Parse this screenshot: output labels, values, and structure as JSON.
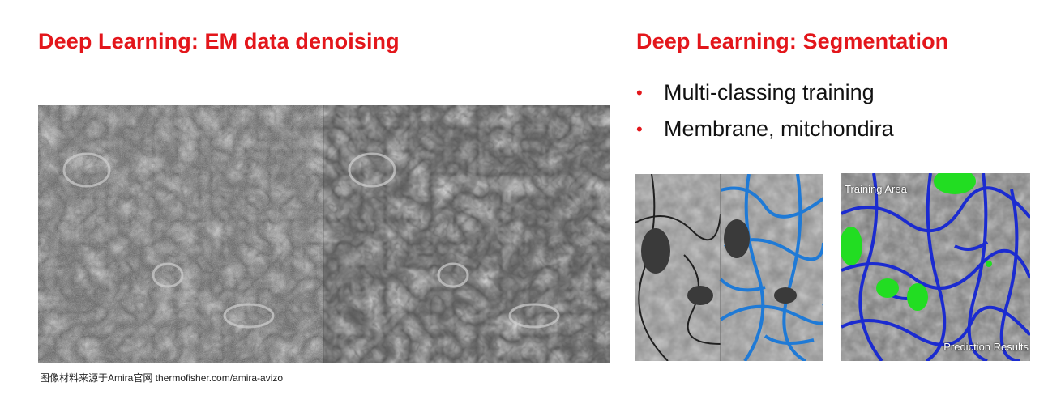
{
  "left": {
    "title": "Deep Learning: EM data denoising",
    "caption": "图像材料来源于Amira官网 thermofisher.com/amira-avizo"
  },
  "right": {
    "title": "Deep Learning: Segmentation",
    "bullets": [
      "Multi-classing training",
      "Membrane, mitchondira"
    ],
    "training_label": "Training Area",
    "prediction_label": "Prediction Results"
  },
  "colors": {
    "title": "#e3161b",
    "membrane_light": "#1f7ad6",
    "membrane_dark": "#1b2bd0",
    "mitochondria": "#22dd22"
  }
}
